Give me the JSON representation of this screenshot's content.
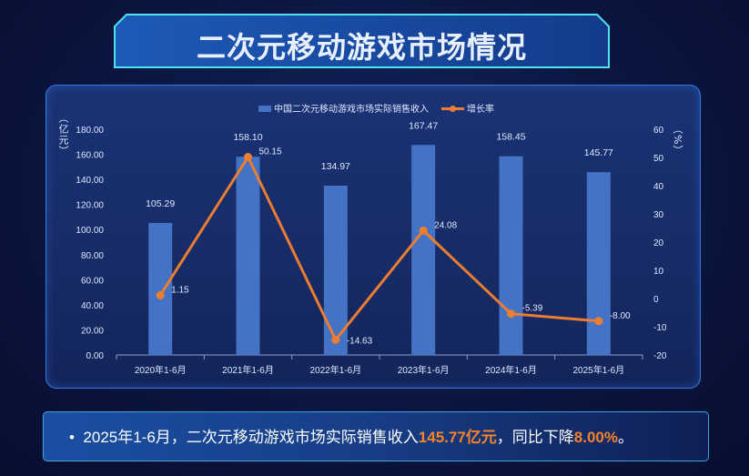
{
  "title": "二次元移动游戏市场情况",
  "chart_data": {
    "type": "bar+line",
    "categories": [
      "2020年1-6月",
      "2021年1-6月",
      "2022年1-6月",
      "2023年1-6月",
      "2024年1-6月",
      "2025年1-6月"
    ],
    "series": [
      {
        "name": "中国二次元移动游戏市场实际销售收入",
        "type": "bar",
        "axis": "left",
        "values": [
          105.29,
          158.1,
          134.97,
          167.47,
          158.45,
          145.77
        ],
        "labels": [
          "105.29",
          "158.10",
          "134.97",
          "167.47",
          "158.45",
          "145.77"
        ],
        "color": "#4472c4"
      },
      {
        "name": "增长率",
        "type": "line",
        "axis": "right",
        "values": [
          1.15,
          50.15,
          -14.63,
          24.08,
          -5.39,
          -8.0
        ],
        "labels": [
          "1.15",
          "50.15",
          "-14.63",
          "24.08",
          "-5.39",
          "-8.00"
        ],
        "color": "#ed7d31"
      }
    ],
    "y_left": {
      "label": "（亿元）",
      "range": [
        0,
        180
      ],
      "ticks": [
        "0.00",
        "20.00",
        "40.00",
        "60.00",
        "80.00",
        "100.00",
        "120.00",
        "140.00",
        "160.00",
        "180.00"
      ]
    },
    "y_right": {
      "label": "（%）",
      "range": [
        -20,
        60
      ],
      "ticks": [
        "-20",
        "-10",
        "0",
        "10",
        "20",
        "30",
        "40",
        "50",
        "60"
      ]
    },
    "legend": "top-center",
    "grid": false
  },
  "note": {
    "bullet": "•",
    "prefix": "2025年1-6月，二次元移动游戏市场实际销售收入",
    "value1": "145.77亿元",
    "middle": "，同比下降",
    "value2": "8.00%",
    "suffix": "。"
  }
}
